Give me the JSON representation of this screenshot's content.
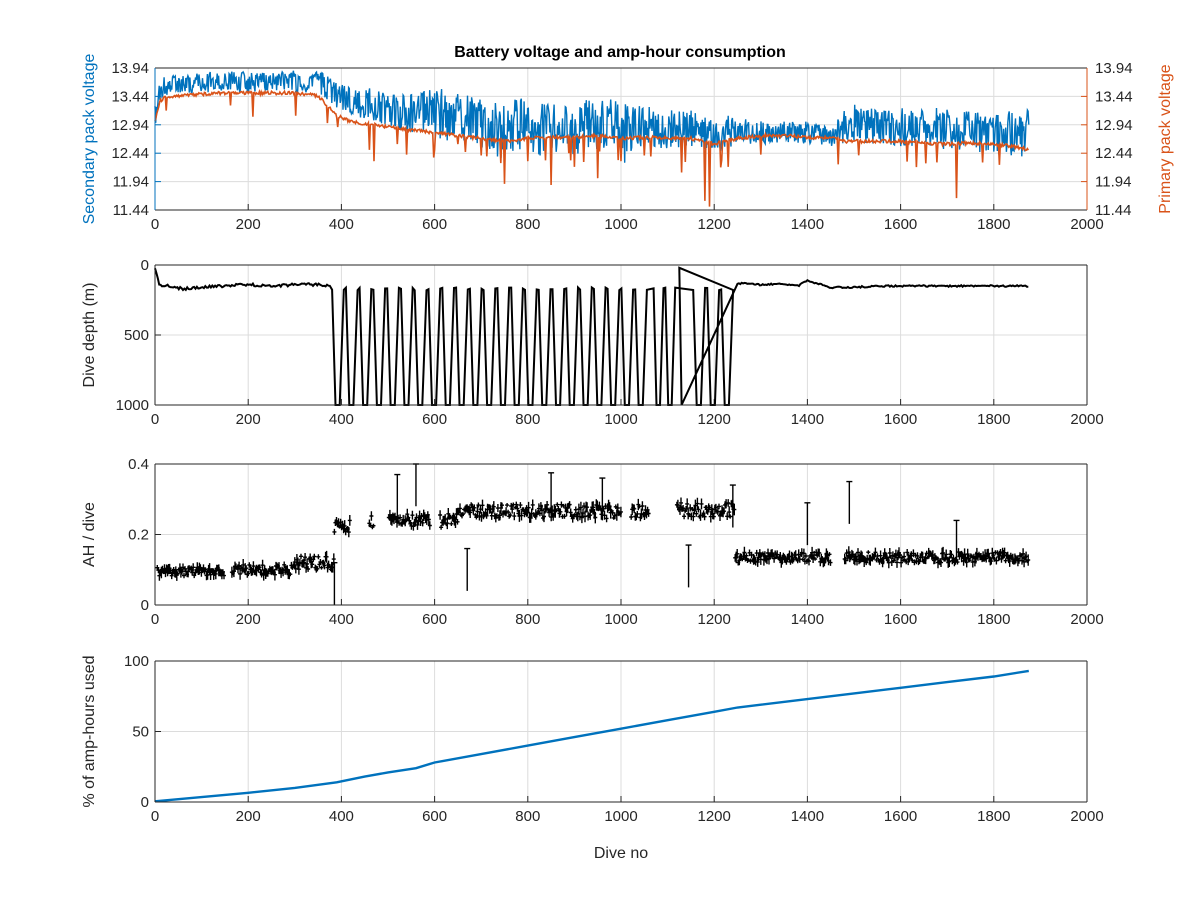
{
  "figure_title": "Battery voltage and amp-hour consumption",
  "chart_data": [
    {
      "type": "line",
      "title": "Battery voltage and amp-hour consumption",
      "xlabel": "",
      "xlim": [
        0,
        2000
      ],
      "xticks": [
        "0",
        "200",
        "400",
        "600",
        "800",
        "1000",
        "1200",
        "1400",
        "1600",
        "1800",
        "2000"
      ],
      "ylim": [
        11.44,
        13.94
      ],
      "yticks_left": [
        "11.44",
        "11.94",
        "12.44",
        "12.94",
        "13.44",
        "13.94"
      ],
      "yticks_right": [
        "11.44",
        "11.94",
        "12.44",
        "12.94",
        "13.44",
        "13.94"
      ],
      "ylabel_left": "Secondary pack voltage",
      "ylabel_right": "Primary pack voltage",
      "grid": true,
      "series": [
        {
          "name": "Secondary pack voltage",
          "axis": "left",
          "color": "#0072BD",
          "x": [
            0,
            10,
            20,
            50,
            100,
            150,
            200,
            250,
            300,
            350,
            390,
            420,
            460,
            500,
            550,
            600,
            650,
            700,
            750,
            800,
            850,
            900,
            950,
            1000,
            1050,
            1100,
            1150,
            1200,
            1250,
            1300,
            1350,
            1400,
            1450,
            1480,
            1500,
            1550,
            1600,
            1650,
            1700,
            1750,
            1800,
            1850,
            1875
          ],
          "lo": [
            12.9,
            13.35,
            13.45,
            13.5,
            13.5,
            13.55,
            13.5,
            13.55,
            13.5,
            13.5,
            13.2,
            13.1,
            13.0,
            12.9,
            12.8,
            12.7,
            12.6,
            12.5,
            12.3,
            12.4,
            12.4,
            12.4,
            12.5,
            12.2,
            12.6,
            12.5,
            12.5,
            12.4,
            12.6,
            12.6,
            12.6,
            12.6,
            12.55,
            12.6,
            12.6,
            12.6,
            12.55,
            12.55,
            12.5,
            12.5,
            12.4,
            12.35,
            12.3
          ],
          "hi": [
            13.3,
            13.7,
            13.85,
            13.85,
            13.88,
            13.88,
            13.88,
            13.9,
            13.9,
            13.9,
            13.7,
            13.6,
            13.6,
            13.5,
            13.5,
            13.6,
            13.5,
            13.4,
            13.45,
            13.4,
            13.35,
            13.3,
            13.45,
            13.35,
            13.3,
            13.2,
            13.2,
            13.1,
            13.1,
            13.0,
            13.0,
            13.0,
            12.9,
            13.25,
            13.3,
            13.2,
            13.25,
            13.2,
            13.3,
            13.2,
            13.1,
            13.25,
            13.2
          ]
        },
        {
          "name": "Primary pack voltage",
          "axis": "right",
          "color": "#D95319",
          "x": [
            0,
            10,
            20,
            50,
            100,
            150,
            200,
            250,
            300,
            350,
            390,
            420,
            460,
            500,
            550,
            600,
            650,
            700,
            750,
            800,
            850,
            900,
            950,
            1000,
            1050,
            1100,
            1150,
            1200,
            1250,
            1300,
            1350,
            1400,
            1450,
            1480,
            1500,
            1550,
            1600,
            1650,
            1700,
            1750,
            1800,
            1850,
            1875
          ],
          "base": [
            13.0,
            13.35,
            13.42,
            13.45,
            13.48,
            13.5,
            13.5,
            13.5,
            13.5,
            13.45,
            13.1,
            13.0,
            12.95,
            12.9,
            12.85,
            12.8,
            12.75,
            12.7,
            12.65,
            12.7,
            12.72,
            12.72,
            12.75,
            12.7,
            12.72,
            12.7,
            12.7,
            12.6,
            12.7,
            12.75,
            12.75,
            12.72,
            12.72,
            12.65,
            12.65,
            12.65,
            12.65,
            12.62,
            12.6,
            12.62,
            12.6,
            12.55,
            12.5
          ],
          "dips": [
            [
              392,
              12.9
            ],
            [
              460,
              12.5
            ],
            [
              470,
              12.3
            ],
            [
              520,
              12.6
            ],
            [
              600,
              12.5
            ],
            [
              650,
              12.6
            ],
            [
              700,
              12.4
            ],
            [
              750,
              11.9
            ],
            [
              800,
              12.3
            ],
            [
              850,
              11.88
            ],
            [
              900,
              12.2
            ],
            [
              950,
              12.0
            ],
            [
              1000,
              12.3
            ],
            [
              1050,
              12.4
            ],
            [
              1130,
              12.1
            ],
            [
              1180,
              11.6
            ],
            [
              1190,
              11.5
            ],
            [
              1230,
              12.2
            ],
            [
              1720,
              11.65
            ]
          ]
        }
      ]
    },
    {
      "type": "line",
      "xlim": [
        0,
        2000
      ],
      "xticks": [
        "0",
        "200",
        "400",
        "600",
        "800",
        "1000",
        "1200",
        "1400",
        "1600",
        "1800",
        "2000"
      ],
      "ylim": [
        0,
        1000
      ],
      "yreversed": true,
      "yticks": [
        "0",
        "500",
        "1000"
      ],
      "ylabel": "Dive depth (m)",
      "grid": true,
      "series": [
        {
          "color": "#000000",
          "x": [
            0,
            10,
            30,
            60,
            100,
            150,
            200,
            250,
            300,
            350,
            375
          ],
          "y": [
            20,
            150,
            150,
            170,
            160,
            150,
            140,
            150,
            140,
            140,
            150
          ],
          "deep_region": [
            [
              380,
              1060
            ],
            [
              1070,
              1120
            ],
            [
              1155,
              1245
            ]
          ],
          "after_x": [
            1250,
            1300,
            1350,
            1380,
            1400,
            1450,
            1500,
            1550,
            1600,
            1700,
            1800,
            1875
          ],
          "after_y": [
            130,
            140,
            135,
            150,
            110,
            160,
            160,
            150,
            150,
            150,
            150,
            150
          ]
        }
      ]
    },
    {
      "type": "scatter",
      "xlim": [
        0,
        2000
      ],
      "xticks": [
        "0",
        "200",
        "400",
        "600",
        "800",
        "1000",
        "1200",
        "1400",
        "1600",
        "1800",
        "2000"
      ],
      "ylim": [
        0,
        0.4
      ],
      "yticks": [
        "0",
        "0.2",
        "0.4"
      ],
      "ylabel": "AH / dive",
      "grid": true,
      "series": [
        {
          "color": "#000000",
          "segments": [
            {
              "x0": 5,
              "x1": 150,
              "mean": 0.095,
              "spread": 0.012
            },
            {
              "x0": 165,
              "x1": 300,
              "mean": 0.1,
              "spread": 0.015
            },
            {
              "x0": 300,
              "x1": 385,
              "mean": 0.12,
              "spread": 0.02
            },
            {
              "x0": 385,
              "x1": 420,
              "mean": 0.22,
              "spread": 0.02
            },
            {
              "x0": 460,
              "x1": 650,
              "mean": 0.24,
              "spread": 0.02
            },
            {
              "x0": 650,
              "x1": 1060,
              "mean": 0.265,
              "spread": 0.02
            },
            {
              "x0": 1120,
              "x1": 1245,
              "mean": 0.27,
              "spread": 0.02
            },
            {
              "x0": 1245,
              "x1": 1450,
              "mean": 0.135,
              "spread": 0.015
            },
            {
              "x0": 1480,
              "x1": 1875,
              "mean": 0.135,
              "spread": 0.015
            }
          ],
          "spikes": [
            [
              560,
              0.4
            ],
            [
              520,
              0.37
            ],
            [
              850,
              0.375
            ],
            [
              960,
              0.36
            ],
            [
              1490,
              0.35
            ],
            [
              1240,
              0.34
            ],
            [
              1400,
              0.29
            ],
            [
              1720,
              0.24
            ],
            [
              670,
              0.16
            ],
            [
              1145,
              0.17
            ],
            [
              385,
              0.12
            ]
          ]
        }
      ]
    },
    {
      "type": "line",
      "xlim": [
        0,
        2000
      ],
      "xticks": [
        "0",
        "200",
        "400",
        "600",
        "800",
        "1000",
        "1200",
        "1400",
        "1600",
        "1800",
        "2000"
      ],
      "ylim": [
        0,
        100
      ],
      "yticks": [
        "0",
        "50",
        "100"
      ],
      "ylabel": "% of amp-hours used",
      "xlabel": "Dive no",
      "grid": true,
      "series": [
        {
          "color": "#0072BD",
          "x": [
            0,
            100,
            200,
            300,
            390,
            450,
            500,
            560,
            600,
            700,
            800,
            900,
            1000,
            1100,
            1200,
            1250,
            1300,
            1400,
            1500,
            1600,
            1700,
            1800,
            1875
          ],
          "y": [
            0.5,
            3.5,
            6.5,
            10,
            14,
            18,
            21,
            24,
            28,
            34,
            40,
            46,
            52,
            58,
            64,
            67,
            69,
            73,
            77,
            81,
            85,
            89,
            93
          ]
        }
      ]
    }
  ]
}
